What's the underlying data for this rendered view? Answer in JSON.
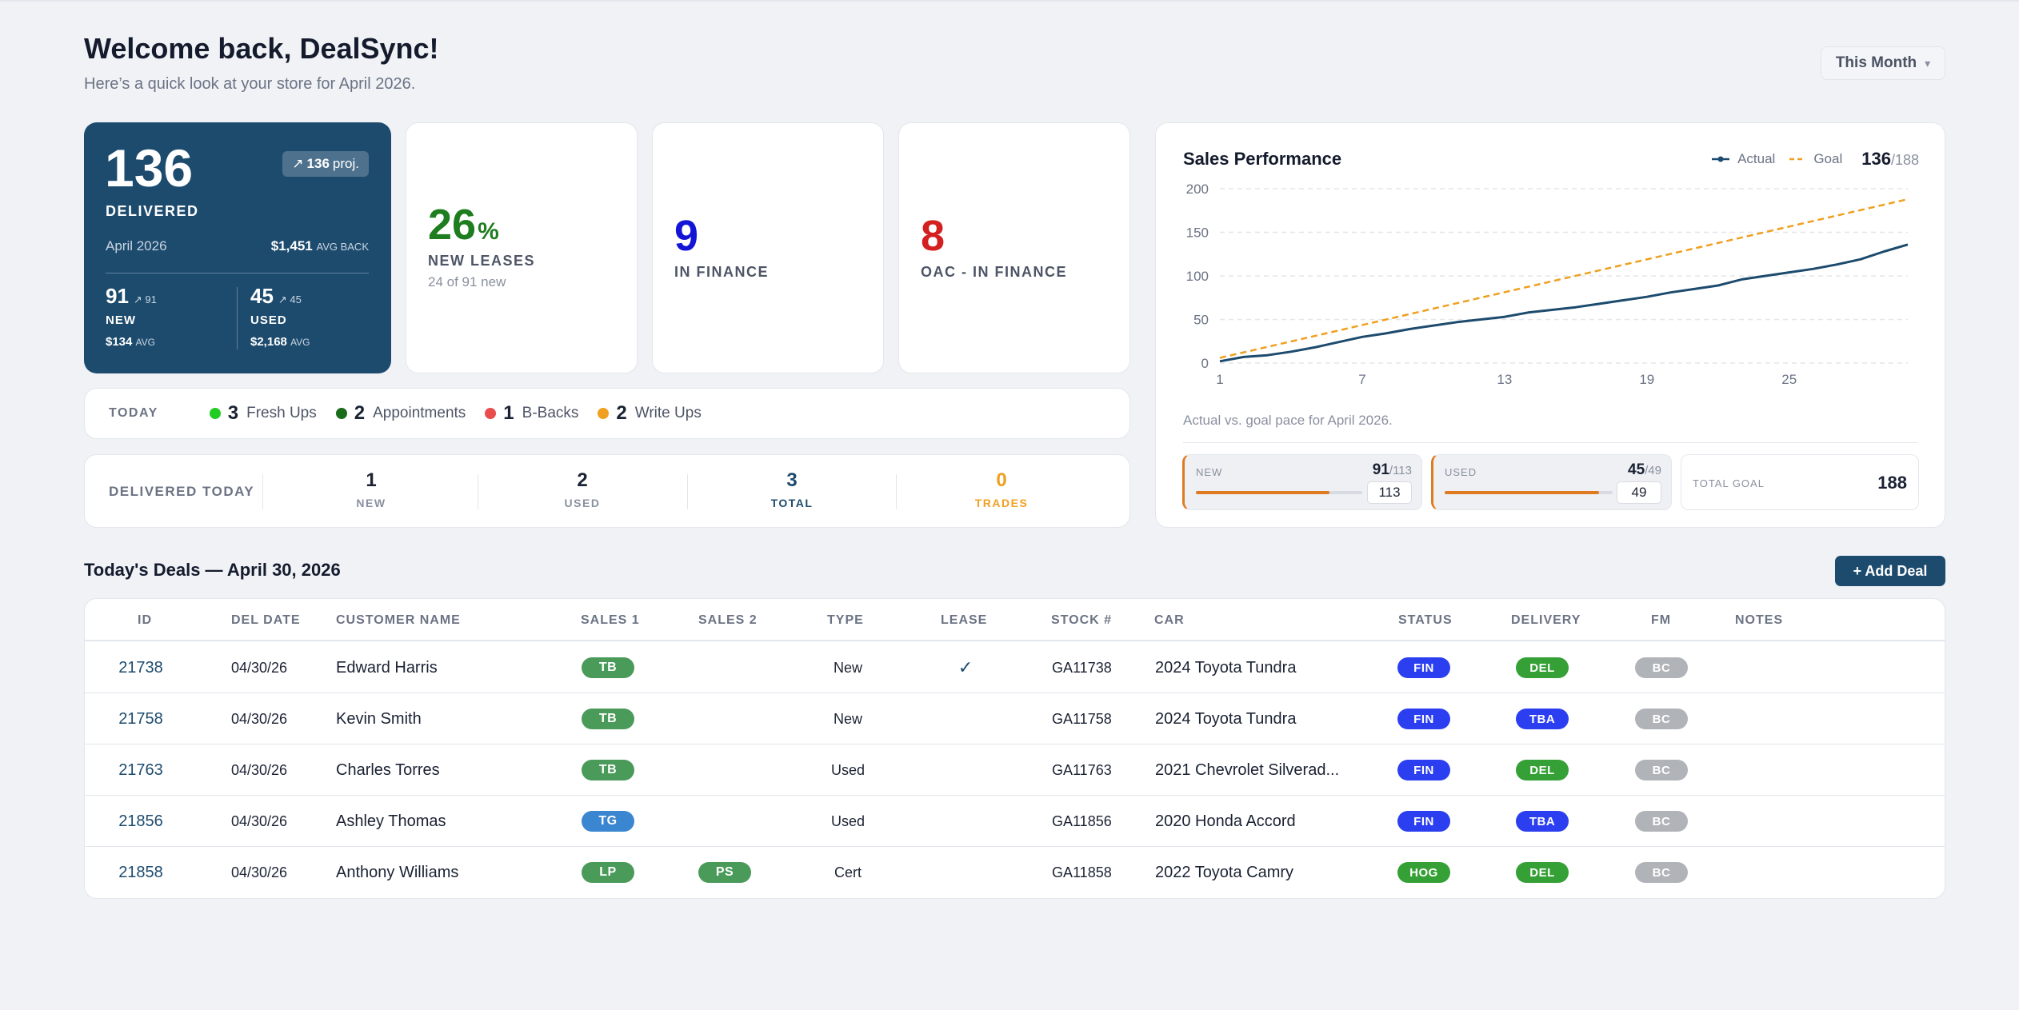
{
  "header": {
    "title": "Welcome back, DealSync!",
    "subtitle": "Here’s a quick look at your store for April 2026.",
    "period": "This Month",
    "period_caret": "▾"
  },
  "delivered": {
    "count": "136",
    "proj_value": "136",
    "proj_suffix": "proj.",
    "proj_arrow": "↗",
    "label": "DELIVERED",
    "month": "April 2026",
    "avg_back_value": "$1,451",
    "avg_back_label": "AVG BACK",
    "new": {
      "count": "91",
      "arrow_small": "↗ 91",
      "label": "NEW",
      "avg_value": "$134",
      "avg_label": "AVG"
    },
    "used": {
      "count": "45",
      "arrow_small": "↗ 45",
      "label": "USED",
      "avg_value": "$2,168",
      "avg_label": "AVG"
    }
  },
  "stats": [
    {
      "value": "26",
      "suffix": "%",
      "label": "NEW LEASES",
      "sub": "24 of 91 new",
      "color": "#1e7d1e"
    },
    {
      "value": "9",
      "suffix": "",
      "label": "IN FINANCE",
      "sub": "",
      "color": "#1414d6"
    },
    {
      "value": "8",
      "suffix": "",
      "label": "OAC - IN FINANCE",
      "sub": "",
      "color": "#d42020"
    }
  ],
  "today": {
    "label": "TODAY",
    "items": [
      {
        "count": "3",
        "label": "Fresh Ups",
        "color": "#22cc22"
      },
      {
        "count": "2",
        "label": "Appointments",
        "color": "#1a6b1a"
      },
      {
        "count": "1",
        "label": "B-Backs",
        "color": "#e94c4c"
      },
      {
        "count": "2",
        "label": "Write Ups",
        "color": "#f0a020"
      }
    ]
  },
  "delivered_today": {
    "label": "DELIVERED TODAY",
    "cols": [
      {
        "value": "1",
        "label": "NEW",
        "num_color": "#1a2233",
        "label_color": "#8a90a0"
      },
      {
        "value": "2",
        "label": "USED",
        "num_color": "#1a2233",
        "label_color": "#8a90a0"
      },
      {
        "value": "3",
        "label": "TOTAL",
        "num_color": "#1d4b6e",
        "label_color": "#1d4b6e"
      },
      {
        "value": "0",
        "label": "TRADES",
        "num_color": "#f0a020",
        "label_color": "#f0a020"
      }
    ]
  },
  "performance": {
    "title": "Sales Performance",
    "legend_actual": "Actual",
    "legend_goal": "Goal",
    "count": "136",
    "count_of": "/188",
    "caption": "Actual vs. goal pace for April 2026.",
    "new_goal": {
      "label": "NEW",
      "value": "91",
      "of": "/113",
      "input": "113",
      "progress": 0.805
    },
    "used_goal": {
      "label": "USED",
      "value": "45",
      "of": "/49",
      "input": "49",
      "progress": 0.918
    },
    "total_goal": {
      "label": "TOTAL GOAL",
      "value": "188"
    }
  },
  "chart_data": {
    "type": "line",
    "title": "Sales Performance",
    "xlabel": "",
    "ylabel": "",
    "x_ticks": [
      "1",
      "7",
      "13",
      "19",
      "25"
    ],
    "y_ticks": [
      "0",
      "50",
      "100",
      "150",
      "200"
    ],
    "xlim": [
      1,
      30
    ],
    "ylim": [
      0,
      200
    ],
    "grid": true,
    "legend_position": "top-right",
    "series": [
      {
        "name": "Actual",
        "color": "#1d4b6e",
        "x": [
          1,
          2,
          3,
          4,
          5,
          6,
          7,
          8,
          9,
          10,
          11,
          12,
          13,
          14,
          15,
          16,
          17,
          18,
          19,
          20,
          21,
          22,
          23,
          24,
          25,
          26,
          27,
          28,
          29,
          30
        ],
        "values": [
          2,
          7,
          9,
          13,
          18,
          24,
          30,
          34,
          39,
          43,
          47,
          50,
          53,
          58,
          61,
          64,
          68,
          72,
          76,
          81,
          85,
          89,
          96,
          100,
          104,
          108,
          113,
          119,
          128,
          136
        ]
      },
      {
        "name": "Goal",
        "color": "#f0a020",
        "dashed": true,
        "x": [
          1,
          30
        ],
        "values": [
          6,
          188
        ]
      }
    ]
  },
  "deals": {
    "title": "Today's Deals — April 30, 2026",
    "add_label": "+ Add Deal",
    "headers": [
      "ID",
      "DEL DATE",
      "CUSTOMER NAME",
      "SALES 1",
      "SALES 2",
      "TYPE",
      "LEASE",
      "STOCK #",
      "CAR",
      "STATUS",
      "DELIVERY",
      "FM",
      "NOTES"
    ],
    "rows": [
      {
        "id": "21738",
        "date": "04/30/26",
        "customer": "Edward Harris",
        "sales1": "TB",
        "sales1_color": "#4a9a5a",
        "sales2": "",
        "sales2_color": "",
        "type": "New",
        "lease": "✓",
        "stock": "GA11738",
        "car": "2024 Toyota Tundra",
        "status": "FIN",
        "status_color": "#2b3ff0",
        "delivery": "DEL",
        "delivery_color": "#35a035",
        "fm": "BC",
        "notes": ""
      },
      {
        "id": "21758",
        "date": "04/30/26",
        "customer": "Kevin Smith",
        "sales1": "TB",
        "sales1_color": "#4a9a5a",
        "sales2": "",
        "sales2_color": "",
        "type": "New",
        "lease": "",
        "stock": "GA11758",
        "car": "2024 Toyota Tundra",
        "status": "FIN",
        "status_color": "#2b3ff0",
        "delivery": "TBA",
        "delivery_color": "#2b3ff0",
        "fm": "BC",
        "notes": ""
      },
      {
        "id": "21763",
        "date": "04/30/26",
        "customer": "Charles Torres",
        "sales1": "TB",
        "sales1_color": "#4a9a5a",
        "sales2": "",
        "sales2_color": "",
        "type": "Used",
        "lease": "",
        "stock": "GA11763",
        "car": "2021 Chevrolet Silverad...",
        "status": "FIN",
        "status_color": "#2b3ff0",
        "delivery": "DEL",
        "delivery_color": "#35a035",
        "fm": "BC",
        "notes": ""
      },
      {
        "id": "21856",
        "date": "04/30/26",
        "customer": "Ashley Thomas",
        "sales1": "TG",
        "sales1_color": "#3a86d0",
        "sales2": "",
        "sales2_color": "",
        "type": "Used",
        "lease": "",
        "stock": "GA11856",
        "car": "2020 Honda Accord",
        "status": "FIN",
        "status_color": "#2b3ff0",
        "delivery": "TBA",
        "delivery_color": "#2b3ff0",
        "fm": "BC",
        "notes": ""
      },
      {
        "id": "21858",
        "date": "04/30/26",
        "customer": "Anthony Williams",
        "sales1": "LP",
        "sales1_color": "#4a9a5a",
        "sales2": "PS",
        "sales2_color": "#4a9a5a",
        "type": "Cert",
        "lease": "",
        "stock": "GA11858",
        "car": "2022 Toyota Camry",
        "status": "HOG",
        "status_color": "#35a035",
        "delivery": "DEL",
        "delivery_color": "#35a035",
        "fm": "BC",
        "notes": ""
      }
    ]
  },
  "colors": {
    "brand": "#1d4b6e",
    "background": "#f0f2f6",
    "fm_pill": "#b0b3b8",
    "goal_accent": "#e07a1f"
  }
}
